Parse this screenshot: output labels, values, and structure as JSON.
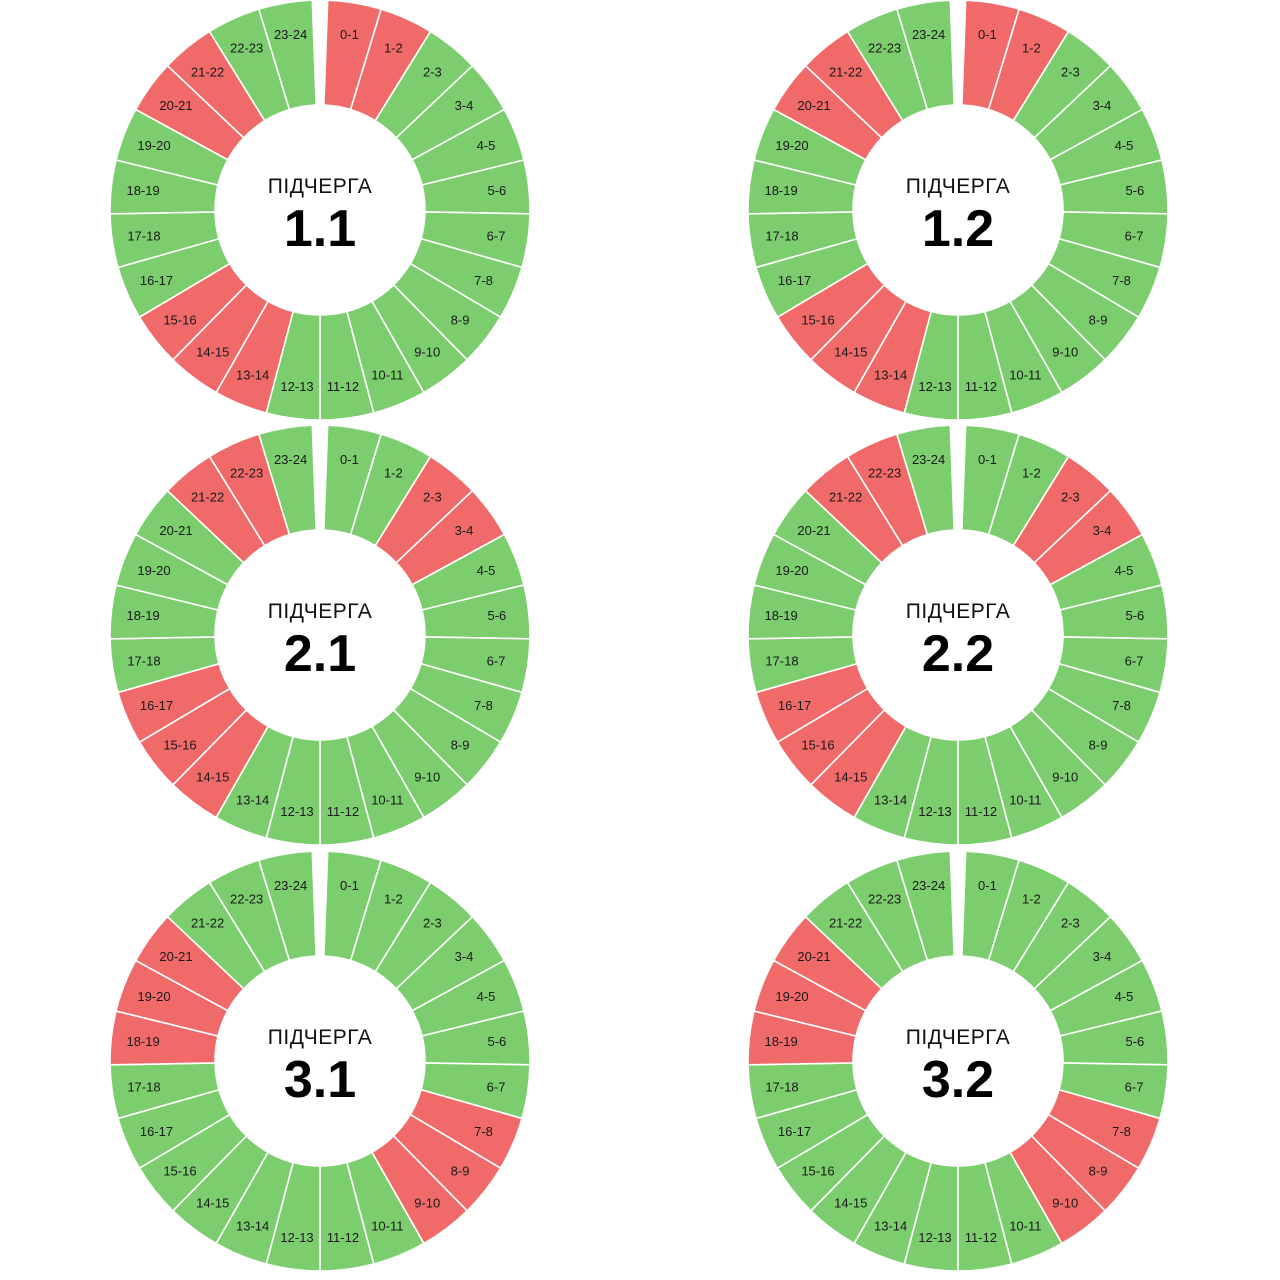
{
  "colors": {
    "on": "#7ccd6e",
    "off": "#f16a6a"
  },
  "hours": [
    "0-1",
    "1-2",
    "2-3",
    "3-4",
    "4-5",
    "5-6",
    "6-7",
    "7-8",
    "8-9",
    "9-10",
    "10-11",
    "11-12",
    "12-13",
    "13-14",
    "14-15",
    "15-16",
    "16-17",
    "17-18",
    "18-19",
    "19-20",
    "20-21",
    "21-22",
    "22-23",
    "23-24"
  ],
  "chart_data": [
    {
      "type": "pie",
      "caption": "ПІДЧЕРГА",
      "title": "1.1",
      "categories": [
        "0-1",
        "1-2",
        "2-3",
        "3-4",
        "4-5",
        "5-6",
        "6-7",
        "7-8",
        "8-9",
        "9-10",
        "10-11",
        "11-12",
        "12-13",
        "13-14",
        "14-15",
        "15-16",
        "16-17",
        "17-18",
        "18-19",
        "19-20",
        "20-21",
        "21-22",
        "22-23",
        "23-24"
      ],
      "states": [
        "off",
        "off",
        "on",
        "on",
        "on",
        "on",
        "on",
        "on",
        "on",
        "on",
        "on",
        "on",
        "on",
        "off",
        "off",
        "off",
        "on",
        "on",
        "on",
        "on",
        "off",
        "off",
        "on",
        "on"
      ]
    },
    {
      "type": "pie",
      "caption": "ПІДЧЕРГА",
      "title": "1.2",
      "categories": [
        "0-1",
        "1-2",
        "2-3",
        "3-4",
        "4-5",
        "5-6",
        "6-7",
        "7-8",
        "8-9",
        "9-10",
        "10-11",
        "11-12",
        "12-13",
        "13-14",
        "14-15",
        "15-16",
        "16-17",
        "17-18",
        "18-19",
        "19-20",
        "20-21",
        "21-22",
        "22-23",
        "23-24"
      ],
      "states": [
        "off",
        "off",
        "on",
        "on",
        "on",
        "on",
        "on",
        "on",
        "on",
        "on",
        "on",
        "on",
        "on",
        "off",
        "off",
        "off",
        "on",
        "on",
        "on",
        "on",
        "off",
        "off",
        "on",
        "on"
      ]
    },
    {
      "type": "pie",
      "caption": "ПІДЧЕРГА",
      "title": "2.1",
      "categories": [
        "0-1",
        "1-2",
        "2-3",
        "3-4",
        "4-5",
        "5-6",
        "6-7",
        "7-8",
        "8-9",
        "9-10",
        "10-11",
        "11-12",
        "12-13",
        "13-14",
        "14-15",
        "15-16",
        "16-17",
        "17-18",
        "18-19",
        "19-20",
        "20-21",
        "21-22",
        "22-23",
        "23-24"
      ],
      "states": [
        "on",
        "on",
        "off",
        "off",
        "on",
        "on",
        "on",
        "on",
        "on",
        "on",
        "on",
        "on",
        "on",
        "on",
        "off",
        "off",
        "off",
        "on",
        "on",
        "on",
        "on",
        "off",
        "off",
        "on"
      ]
    },
    {
      "type": "pie",
      "caption": "ПІДЧЕРГА",
      "title": "2.2",
      "categories": [
        "0-1",
        "1-2",
        "2-3",
        "3-4",
        "4-5",
        "5-6",
        "6-7",
        "7-8",
        "8-9",
        "9-10",
        "10-11",
        "11-12",
        "12-13",
        "13-14",
        "14-15",
        "15-16",
        "16-17",
        "17-18",
        "18-19",
        "19-20",
        "20-21",
        "21-22",
        "22-23",
        "23-24"
      ],
      "states": [
        "on",
        "on",
        "off",
        "off",
        "on",
        "on",
        "on",
        "on",
        "on",
        "on",
        "on",
        "on",
        "on",
        "on",
        "off",
        "off",
        "off",
        "on",
        "on",
        "on",
        "on",
        "off",
        "off",
        "on"
      ]
    },
    {
      "type": "pie",
      "caption": "ПІДЧЕРГА",
      "title": "3.1",
      "categories": [
        "0-1",
        "1-2",
        "2-3",
        "3-4",
        "4-5",
        "5-6",
        "6-7",
        "7-8",
        "8-9",
        "9-10",
        "10-11",
        "11-12",
        "12-13",
        "13-14",
        "14-15",
        "15-16",
        "16-17",
        "17-18",
        "18-19",
        "19-20",
        "20-21",
        "21-22",
        "22-23",
        "23-24"
      ],
      "states": [
        "on",
        "on",
        "on",
        "on",
        "on",
        "on",
        "on",
        "off",
        "off",
        "off",
        "on",
        "on",
        "on",
        "on",
        "on",
        "on",
        "on",
        "on",
        "off",
        "off",
        "off",
        "on",
        "on",
        "on"
      ]
    },
    {
      "type": "pie",
      "caption": "ПІДЧЕРГА",
      "title": "3.2",
      "categories": [
        "0-1",
        "1-2",
        "2-3",
        "3-4",
        "4-5",
        "5-6",
        "6-7",
        "7-8",
        "8-9",
        "9-10",
        "10-11",
        "11-12",
        "12-13",
        "13-14",
        "14-15",
        "15-16",
        "16-17",
        "17-18",
        "18-19",
        "19-20",
        "20-21",
        "21-22",
        "22-23",
        "23-24"
      ],
      "states": [
        "on",
        "on",
        "on",
        "on",
        "on",
        "on",
        "on",
        "off",
        "off",
        "off",
        "on",
        "on",
        "on",
        "on",
        "on",
        "on",
        "on",
        "on",
        "off",
        "off",
        "off",
        "on",
        "on",
        "on"
      ]
    }
  ]
}
